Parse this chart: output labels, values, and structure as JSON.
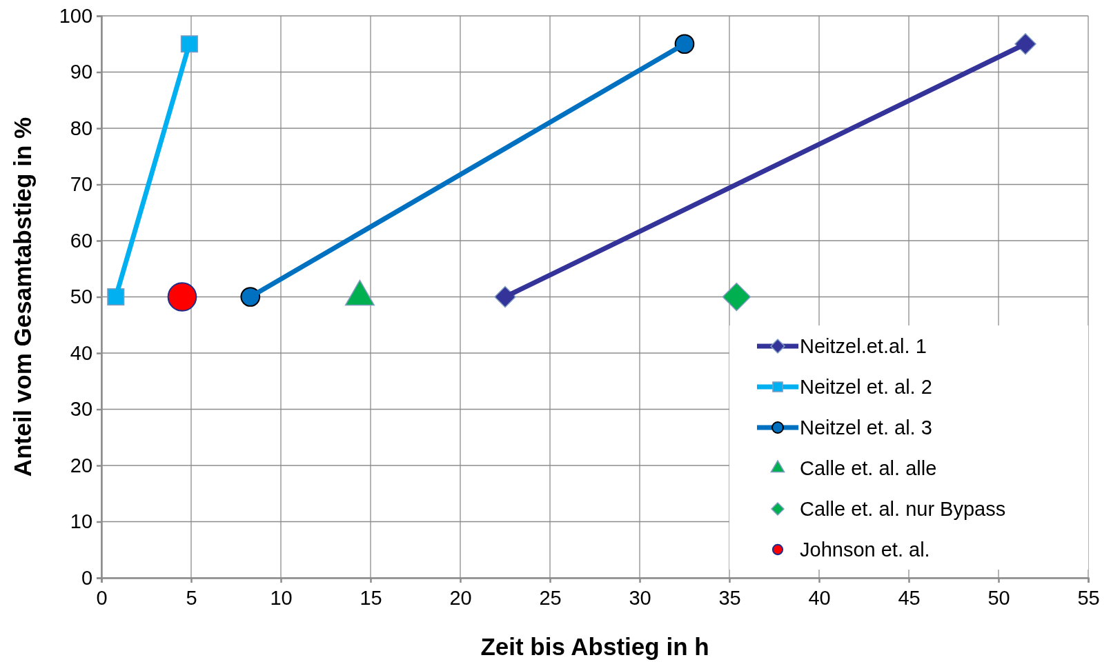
{
  "chart_data": {
    "type": "line",
    "xlabel": "Zeit bis Abstieg in h",
    "ylabel": "Anteil vom Gesamtabstieg in %",
    "xlim": [
      0,
      55
    ],
    "xticks": [
      0,
      5,
      10,
      15,
      20,
      25,
      30,
      35,
      40,
      45,
      50,
      55
    ],
    "ylim": [
      0,
      100
    ],
    "yticks": [
      0,
      10,
      20,
      30,
      40,
      50,
      60,
      70,
      80,
      90,
      100
    ],
    "grid": true,
    "legend": "bottom right",
    "series": [
      {
        "name": "Neitzel.et.al. 1",
        "color": "#333399",
        "marker": "diamond",
        "x": [
          22.5,
          51.5
        ],
        "values": [
          50,
          95
        ]
      },
      {
        "name": "Neitzel et. al. 2",
        "color": "#00b0f0",
        "marker": "square",
        "x": [
          0.8,
          4.9
        ],
        "values": [
          50,
          95
        ]
      },
      {
        "name": "Neitzel et. al. 3",
        "color": "#0070c0",
        "marker": "circle",
        "x": [
          8.3,
          32.5
        ],
        "values": [
          50,
          95
        ]
      },
      {
        "name": "Calle et. al. alle",
        "type": "scatter",
        "color": "#00b050",
        "marker": "triangle",
        "x": [
          14.4
        ],
        "values": [
          50
        ]
      },
      {
        "name": "Calle et. al. nur Bypass",
        "type": "scatter",
        "color": "#00b050",
        "marker": "diamond",
        "x": [
          35.4
        ],
        "values": [
          50
        ]
      },
      {
        "name": "Johnson et. al.",
        "type": "scatter",
        "color": "#ff0000",
        "marker": "circle",
        "x": [
          4.5
        ],
        "values": [
          50
        ]
      }
    ]
  }
}
